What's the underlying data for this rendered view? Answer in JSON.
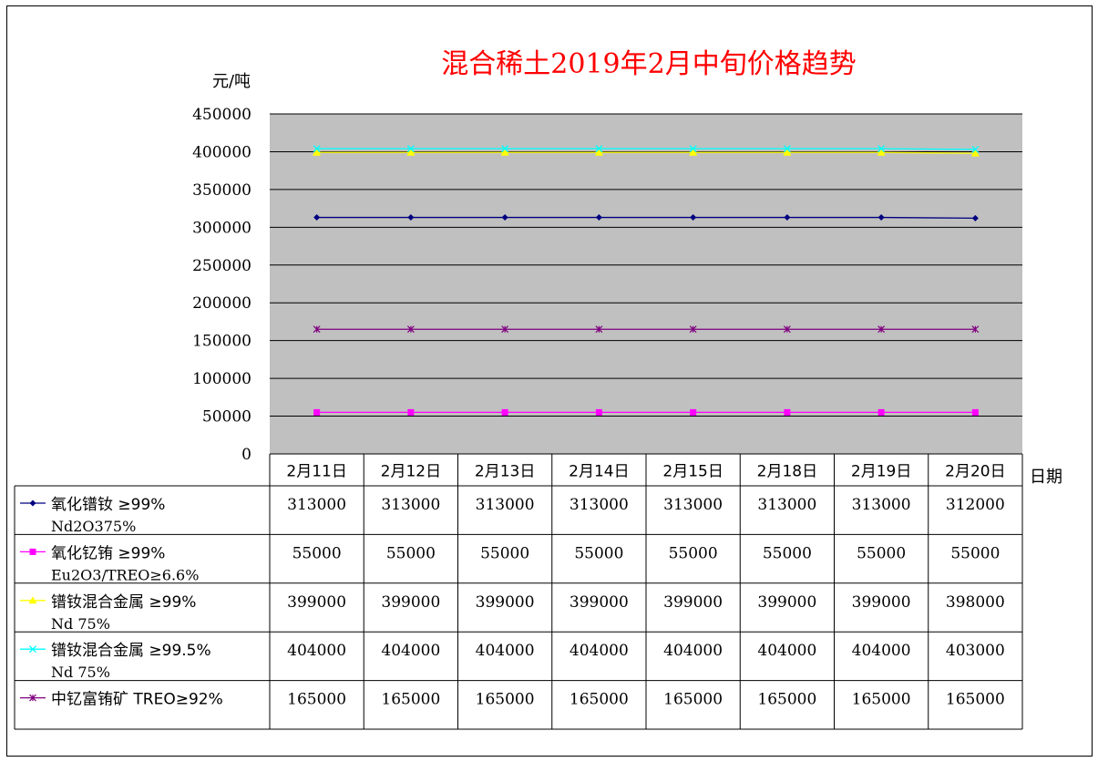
{
  "chart_data": {
    "type": "line",
    "title": "混合稀土2019年2月中旬价格趋势",
    "ylabel": "元/吨",
    "xlabel": "日期",
    "ylim": [
      0,
      450000
    ],
    "yticks": [
      0,
      50000,
      100000,
      150000,
      200000,
      250000,
      300000,
      350000,
      400000,
      450000
    ],
    "grid": true,
    "legend": "data-table-left",
    "categories": [
      "2月11日",
      "2月12日",
      "2月13日",
      "2月14日",
      "2月15日",
      "2月18日",
      "2月19日",
      "2月20日"
    ],
    "series": [
      {
        "name": "氧化镨钕 ≥99%",
        "name2": "Nd2O375%",
        "color": "#000080",
        "marker": "diamond",
        "values": [
          313000,
          313000,
          313000,
          313000,
          313000,
          313000,
          313000,
          312000
        ]
      },
      {
        "name": "氧化钇铕 ≥99%",
        "name2": "Eu2O3/TREO≥6.6%",
        "color": "#ff00ff",
        "marker": "square",
        "values": [
          55000,
          55000,
          55000,
          55000,
          55000,
          55000,
          55000,
          55000
        ]
      },
      {
        "name": "镨钕混合金属 ≥99%",
        "name2": "Nd 75%",
        "color": "#ffff00",
        "marker": "triangle",
        "values": [
          399000,
          399000,
          399000,
          399000,
          399000,
          399000,
          399000,
          398000
        ]
      },
      {
        "name": "镨钕混合金属 ≥99.5%",
        "name2": "Nd  75%",
        "color": "#00ffff",
        "marker": "x",
        "values": [
          404000,
          404000,
          404000,
          404000,
          404000,
          404000,
          404000,
          403000
        ]
      },
      {
        "name": "中钇富铕矿 TREO≥92%",
        "name2": "",
        "color": "#800080",
        "marker": "star",
        "values": [
          165000,
          165000,
          165000,
          165000,
          165000,
          165000,
          165000,
          165000
        ]
      }
    ]
  }
}
